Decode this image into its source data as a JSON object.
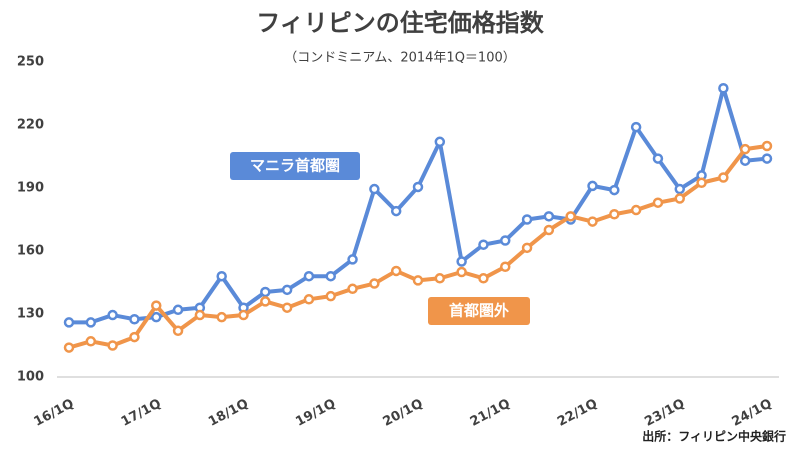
{
  "chart_data": {
    "type": "line",
    "title": "フィリピンの住宅価格指数",
    "subtitle": "（コンドミニアム、2014年1Q＝100）",
    "source": "出所：フィリピン中央銀行",
    "categories": [
      "16/1Q",
      null,
      null,
      null,
      "17/1Q",
      null,
      null,
      null,
      "18/1Q",
      null,
      null,
      null,
      "19/1Q",
      null,
      null,
      null,
      "20/1Q",
      null,
      null,
      null,
      "21/1Q",
      null,
      null,
      null,
      "22/1Q",
      null,
      null,
      null,
      "23/1Q",
      null,
      null,
      null,
      "24/1Q"
    ],
    "series": [
      {
        "name": "マニラ首都圏",
        "color": "#5a8ad8",
        "values": [
          126,
          126,
          129.5,
          127.5,
          128.5,
          132,
          133,
          148,
          133,
          140.5,
          141.5,
          148,
          148,
          156,
          189.5,
          179,
          190.5,
          212,
          155,
          163,
          165,
          175,
          176.5,
          175,
          191,
          189,
          219,
          204,
          189.5,
          196,
          237.5,
          203,
          204
        ]
      },
      {
        "name": "首都圏外",
        "color": "#f0954a",
        "values": [
          114,
          117,
          115,
          119,
          134,
          122,
          129.5,
          128.5,
          129.5,
          136,
          133,
          137,
          138.5,
          142,
          144.5,
          150.5,
          146,
          147,
          150,
          147,
          152.5,
          161.5,
          170,
          176.5,
          174,
          177.5,
          179.5,
          183,
          185,
          192.5,
          195,
          208.5,
          210
        ]
      }
    ],
    "ylim": [
      100,
      250
    ],
    "yticks": [
      100,
      130,
      160,
      190,
      220,
      250
    ],
    "grid": false
  }
}
